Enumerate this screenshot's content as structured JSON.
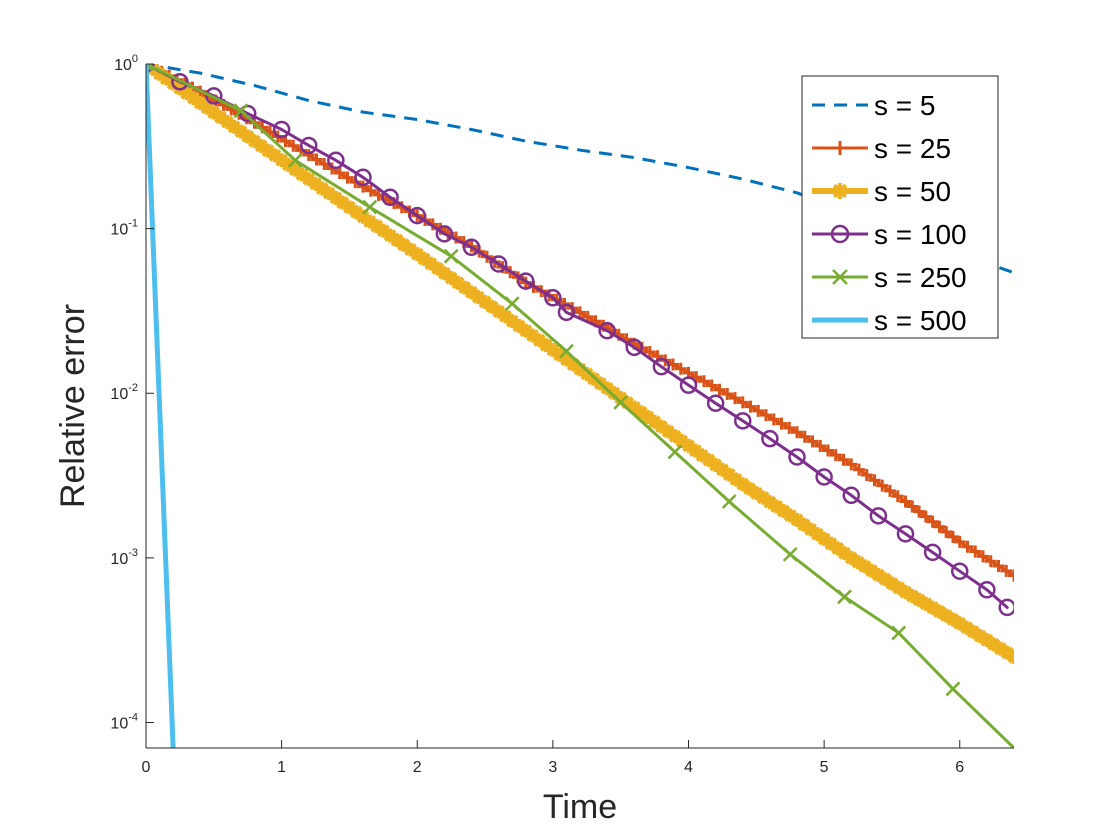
{
  "chart_data": {
    "type": "line",
    "title": "",
    "xlabel": "Time",
    "ylabel": "Relative error",
    "yscale": "log",
    "xlim": [
      0,
      6.4
    ],
    "ylim": [
      7e-05,
      1
    ],
    "xticks": [
      0,
      1,
      2,
      3,
      4,
      5,
      6
    ],
    "xtick_labels": [
      "0",
      "1",
      "2",
      "3",
      "4",
      "5",
      "6"
    ],
    "yticks": [
      {
        "value": 0.0001,
        "base": "10",
        "exp": "-4"
      },
      {
        "value": 0.001,
        "base": "10",
        "exp": "-3"
      },
      {
        "value": 0.01,
        "base": "10",
        "exp": "-2"
      },
      {
        "value": 0.1,
        "base": "10",
        "exp": "-1"
      },
      {
        "value": 1,
        "base": "10",
        "exp": "0"
      }
    ],
    "legend_position": "top-right",
    "series": [
      {
        "name": "s = 5",
        "color": "#0072BD",
        "style": "dashed",
        "marker": "none",
        "x": [
          0,
          0.4,
          0.8,
          1.2,
          1.6,
          2.0,
          2.4,
          2.8,
          3.2,
          3.6,
          4.0,
          4.4,
          4.8,
          5.2,
          5.6,
          6.0,
          6.4
        ],
        "y": [
          1,
          0.88,
          0.74,
          0.6,
          0.51,
          0.46,
          0.4,
          0.34,
          0.3,
          0.27,
          0.235,
          0.2,
          0.165,
          0.125,
          0.095,
          0.07,
          0.054
        ]
      },
      {
        "name": "s = 25",
        "color": "#D95319",
        "style": "solid",
        "marker": "plus",
        "x": [
          0,
          0.4,
          0.8,
          1.2,
          1.6,
          2.0,
          2.4,
          2.8,
          3.2,
          3.6,
          4.0,
          4.4,
          4.8,
          5.2,
          5.6,
          6.0,
          6.4
        ],
        "y": [
          1,
          0.68,
          0.44,
          0.28,
          0.18,
          0.12,
          0.078,
          0.047,
          0.031,
          0.02,
          0.0133,
          0.0088,
          0.0058,
          0.0037,
          0.0022,
          0.00125,
          0.00078
        ]
      },
      {
        "name": "s = 50",
        "color": "#EDB120",
        "style": "solid",
        "marker": "asterisk",
        "x": [
          0,
          0.4,
          0.8,
          1.2,
          1.6,
          2.0,
          2.4,
          2.8,
          3.2,
          3.6,
          4.0,
          4.4,
          4.8,
          5.2,
          5.6,
          6.0,
          6.4
        ],
        "y": [
          1,
          0.58,
          0.34,
          0.2,
          0.118,
          0.07,
          0.041,
          0.024,
          0.014,
          0.0082,
          0.0048,
          0.0028,
          0.0017,
          0.001,
          0.00062,
          0.0004,
          0.00025
        ]
      },
      {
        "name": "s = 100",
        "color": "#7E2F8E",
        "style": "solid",
        "marker": "circle",
        "x": [
          0,
          0.25,
          0.5,
          0.75,
          1.0,
          1.2,
          1.4,
          1.6,
          1.8,
          2.0,
          2.2,
          2.4,
          2.6,
          2.8,
          3.0,
          3.1,
          3.4,
          3.6,
          3.8,
          4.0,
          4.2,
          4.4,
          4.6,
          4.8,
          5.0,
          5.2,
          5.4,
          5.6,
          5.8,
          6.0,
          6.2,
          6.35
        ],
        "y": [
          1,
          0.78,
          0.64,
          0.5,
          0.4,
          0.32,
          0.26,
          0.205,
          0.155,
          0.12,
          0.093,
          0.077,
          0.061,
          0.048,
          0.038,
          0.031,
          0.024,
          0.019,
          0.0145,
          0.0112,
          0.0087,
          0.0068,
          0.0053,
          0.0041,
          0.0031,
          0.0024,
          0.0018,
          0.0014,
          0.00108,
          0.00083,
          0.00064,
          0.0005
        ]
      },
      {
        "name": "s = 250",
        "color": "#77AC30",
        "style": "solid",
        "marker": "x",
        "x": [
          0,
          0.7,
          1.1,
          1.65,
          2.25,
          2.7,
          3.1,
          3.5,
          3.9,
          4.3,
          4.75,
          5.15,
          5.55,
          5.95,
          6.4
        ],
        "y": [
          1,
          0.52,
          0.26,
          0.135,
          0.068,
          0.035,
          0.018,
          0.0088,
          0.0044,
          0.0022,
          0.00105,
          0.00058,
          0.00035,
          0.00016,
          7e-05
        ]
      },
      {
        "name": "s = 500",
        "color": "#4DBEEE",
        "style": "solid",
        "marker": "none",
        "x": [
          0,
          0.2
        ],
        "y": [
          1,
          7e-05
        ]
      }
    ]
  }
}
